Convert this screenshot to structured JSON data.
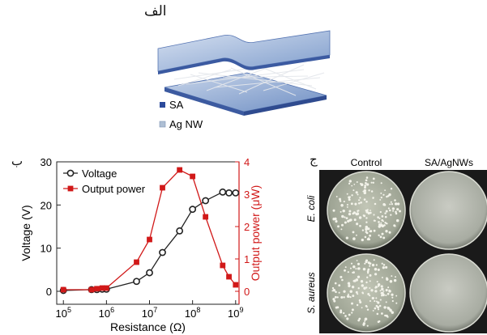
{
  "panels": {
    "a": {
      "label": "الف",
      "legend": [
        {
          "text": "SA",
          "color": "#2b4a9b"
        },
        {
          "text": "Ag NW",
          "color": "#aebfd4"
        }
      ]
    },
    "b": {
      "label": "ب"
    },
    "c": {
      "label": "ج",
      "columns": [
        "Control",
        "SA/AgNWs"
      ],
      "rows": [
        "E. coli",
        "S. aureus"
      ]
    }
  },
  "chart_data": {
    "type": "line",
    "x": [
      100000,
      450000,
      600000,
      800000,
      1000000,
      5000000,
      10000000,
      20000000,
      50000000,
      100000000,
      200000000,
      500000000,
      700000000,
      1000000000
    ],
    "xlabel": "Resistance (Ω)",
    "x_scale": "log",
    "xlim": [
      70000,
      1200000000
    ],
    "x_tick_labels": [
      "10^5",
      "10^6",
      "10^7",
      "10^8",
      "10^9"
    ],
    "series": [
      {
        "name": "Voltage",
        "axis": "left",
        "color": "#222222",
        "marker": "circle",
        "values": [
          0.2,
          0.4,
          0.4,
          0.5,
          0.5,
          2.3,
          4.3,
          9.0,
          14.0,
          19.0,
          21.0,
          23.0,
          22.8,
          22.8
        ]
      },
      {
        "name": "Output power",
        "axis": "right",
        "color": "#d11919",
        "marker": "square",
        "values": [
          0.05,
          0.05,
          0.08,
          0.1,
          0.1,
          0.9,
          1.6,
          3.2,
          3.75,
          3.55,
          2.3,
          0.8,
          0.45,
          0.2
        ]
      }
    ],
    "ylabel_left": "Voltage (V)",
    "ylim_left": [
      -3,
      30
    ],
    "yticks_left": [
      0,
      10,
      20,
      30
    ],
    "ylabel_right": "Output power (μW)",
    "ylim_right": [
      -0.4,
      4
    ],
    "yticks_right": [
      0,
      1,
      2,
      3,
      4
    ],
    "legend_position": "top-left"
  }
}
